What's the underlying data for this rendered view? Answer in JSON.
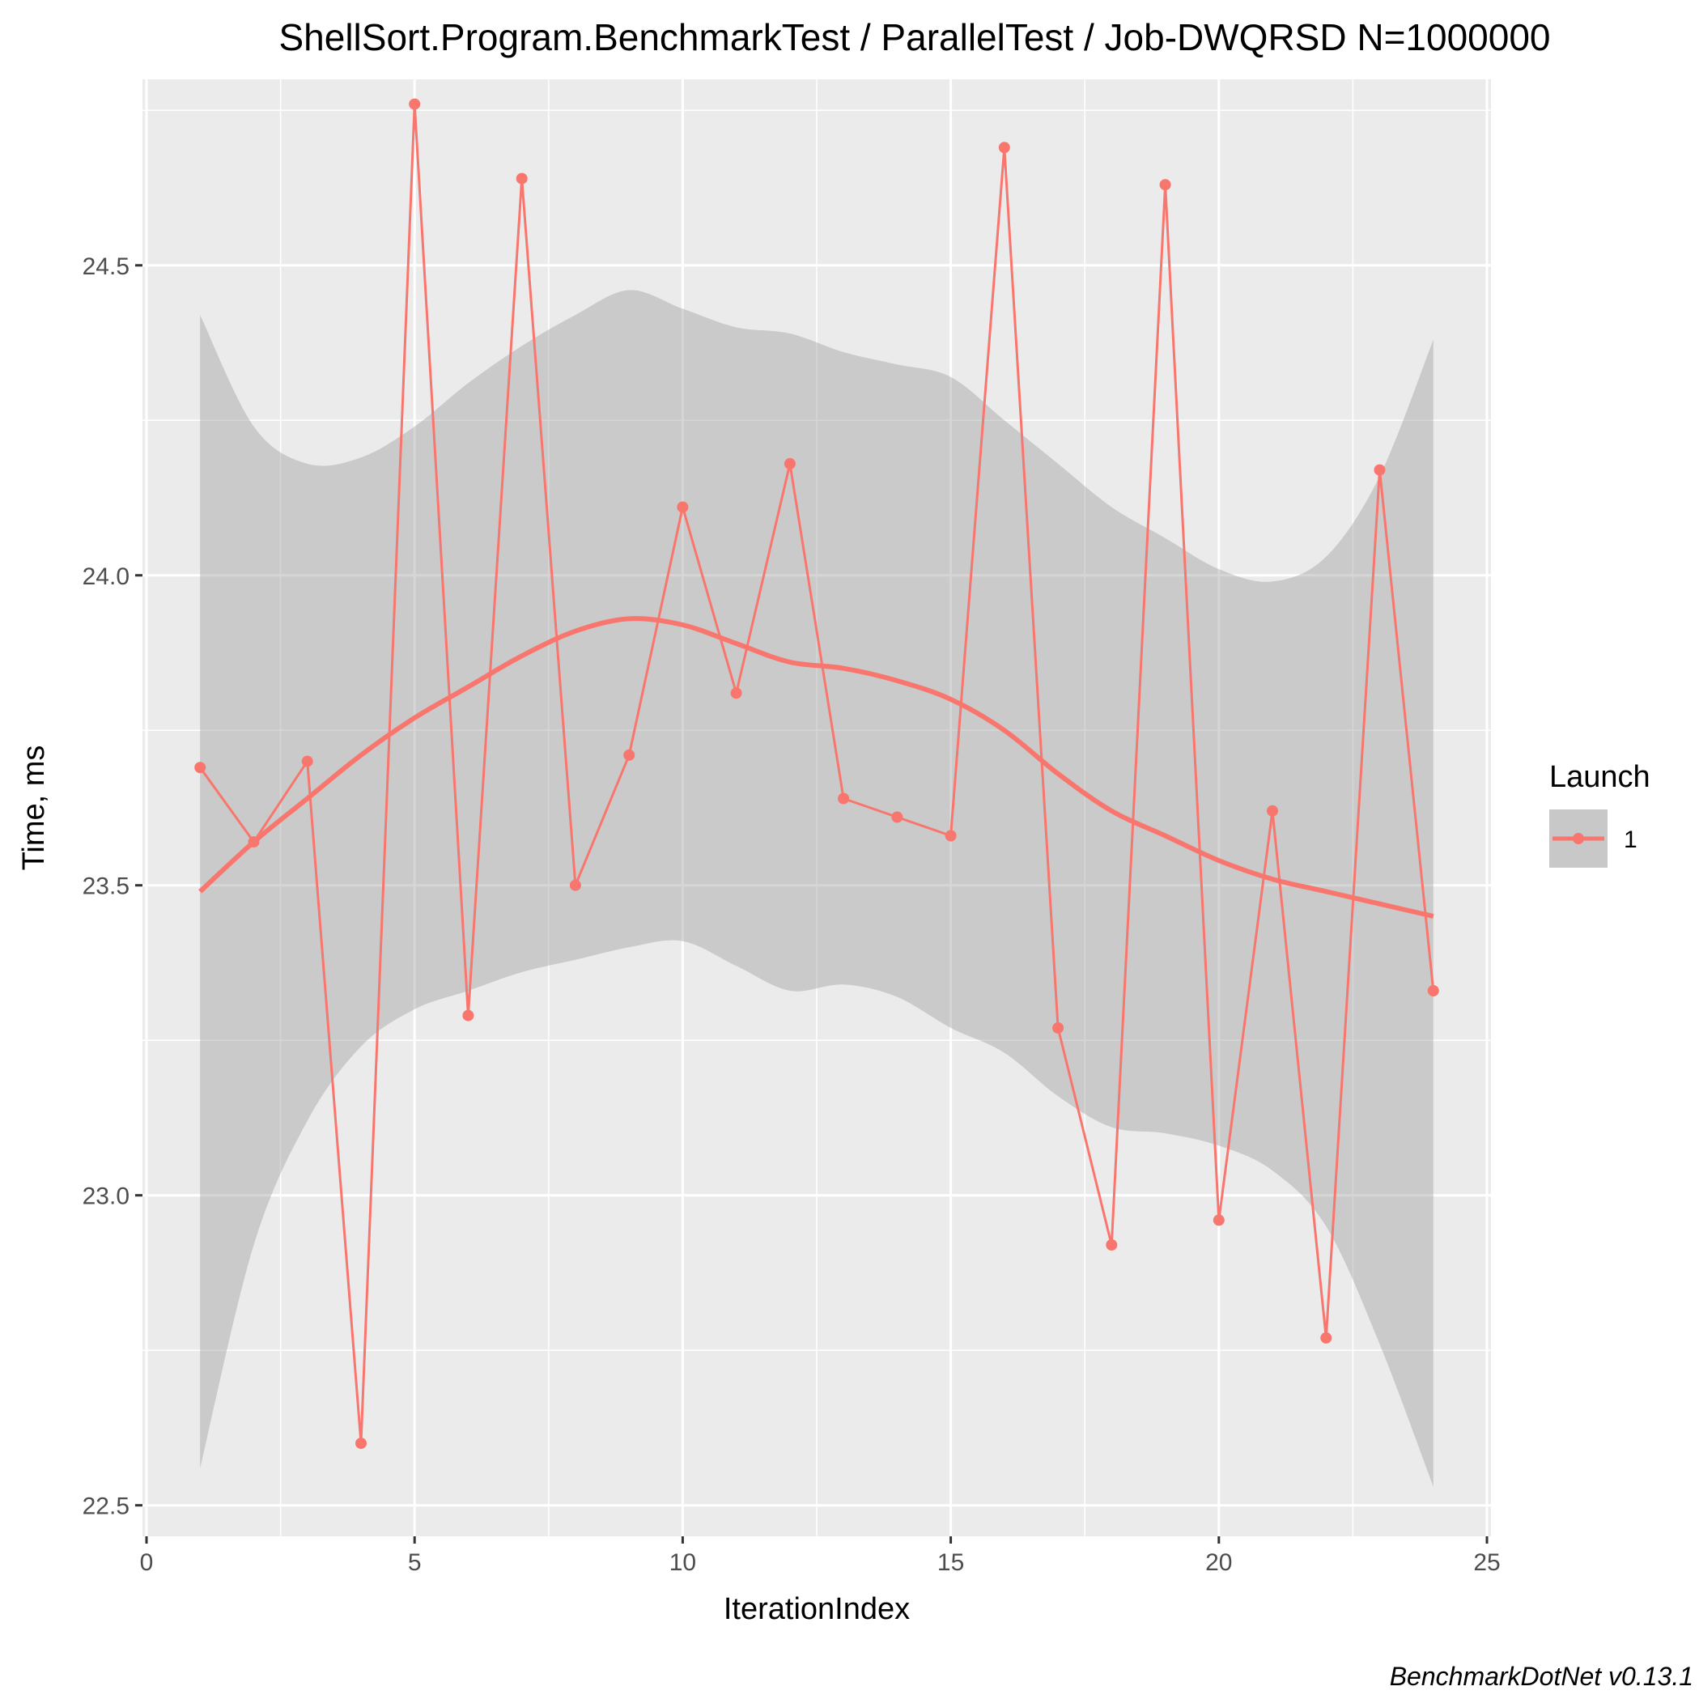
{
  "chart_data": {
    "type": "line",
    "title": "ShellSort.Program.BenchmarkTest / ParallelTest / Job-DWQRSD N=1000000",
    "xlabel": "IterationIndex",
    "ylabel": "Time, ms",
    "caption": "BenchmarkDotNet v0.13.1",
    "xlim": [
      0,
      25
    ],
    "ylim": [
      22.45,
      24.8
    ],
    "x_ticks": [
      0,
      5,
      10,
      15,
      20,
      25
    ],
    "x_tick_labels": [
      "0",
      "5",
      "10",
      "15",
      "20",
      "25"
    ],
    "y_ticks": [
      22.5,
      23.0,
      23.5,
      24.0,
      24.5
    ],
    "y_tick_labels": [
      "22.5",
      "23.0",
      "23.5",
      "24.0",
      "24.5"
    ],
    "grid": true,
    "legend": {
      "title": "Launch",
      "position": "right",
      "entries": [
        "1"
      ]
    },
    "colors": {
      "series": "#f8766d",
      "band": "#999999",
      "panel": "#ebebeb",
      "grid": "#ffffff"
    },
    "series": [
      {
        "name": "1",
        "x": [
          1,
          2,
          3,
          4,
          5,
          6,
          7,
          8,
          9,
          10,
          11,
          12,
          13,
          14,
          15,
          16,
          17,
          18,
          19,
          20,
          21,
          22,
          23,
          24
        ],
        "y": [
          23.69,
          23.57,
          23.7,
          22.6,
          24.76,
          23.29,
          24.64,
          23.5,
          23.71,
          24.11,
          23.81,
          24.18,
          23.64,
          23.61,
          23.58,
          24.69,
          23.27,
          22.92,
          24.63,
          22.96,
          23.62,
          22.77,
          24.17,
          23.33
        ]
      }
    ],
    "smooth": {
      "x": [
        1,
        2,
        3,
        4,
        5,
        6,
        7,
        8,
        9,
        10,
        11,
        12,
        13,
        14,
        15,
        16,
        17,
        18,
        19,
        20,
        21,
        22,
        23,
        24
      ],
      "fit": [
        23.49,
        23.57,
        23.64,
        23.71,
        23.77,
        23.82,
        23.87,
        23.91,
        23.93,
        23.92,
        23.89,
        23.86,
        23.85,
        23.83,
        23.8,
        23.75,
        23.68,
        23.62,
        23.58,
        23.54,
        23.51,
        23.49,
        23.47,
        23.45
      ],
      "lower": [
        22.56,
        22.92,
        23.12,
        23.24,
        23.3,
        23.33,
        23.36,
        23.38,
        23.4,
        23.41,
        23.37,
        23.33,
        23.34,
        23.32,
        23.27,
        23.23,
        23.16,
        23.11,
        23.1,
        23.08,
        23.04,
        22.95,
        22.76,
        22.53
      ],
      "upper": [
        24.42,
        24.24,
        24.18,
        24.19,
        24.24,
        24.31,
        24.37,
        24.42,
        24.46,
        24.43,
        24.4,
        24.39,
        24.36,
        24.34,
        24.32,
        24.25,
        24.18,
        24.11,
        24.06,
        24.01,
        23.99,
        24.03,
        24.16,
        24.38
      ]
    }
  }
}
